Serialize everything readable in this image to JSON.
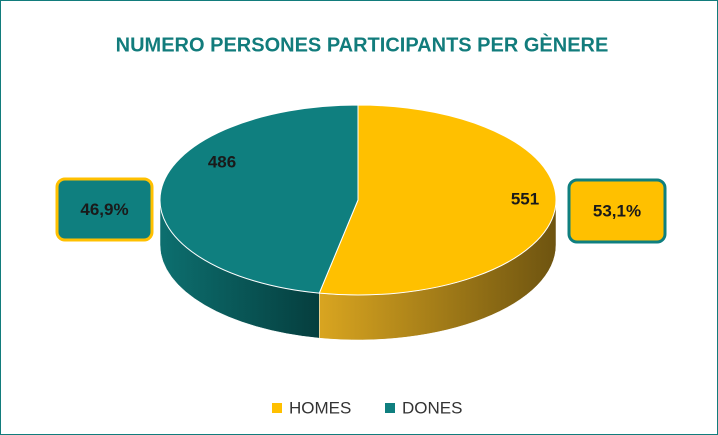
{
  "chart_data": {
    "type": "pie",
    "title": "NUMERO PERSONES PARTICIPANTS PER GÈNERE",
    "categories": [
      "HOMES",
      "DONES"
    ],
    "values": [
      551,
      486
    ],
    "share_labels": [
      "53,1%",
      "46,9%"
    ],
    "colors": [
      "#FFC000",
      "#0F7F7F"
    ],
    "legend": "bottom"
  }
}
